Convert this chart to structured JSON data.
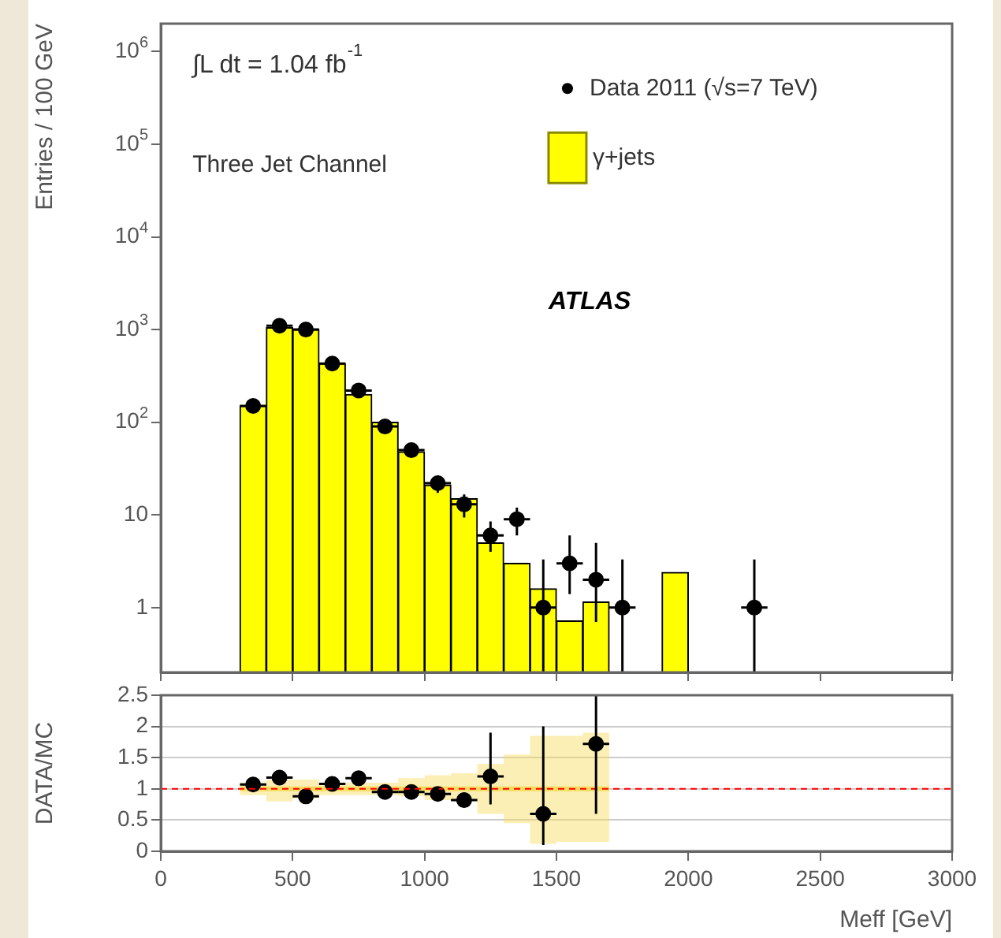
{
  "chart_data": [
    {
      "type": "histogram",
      "ylabel": "Entries / 100 GeV",
      "log": "y",
      "ylim": [
        0.2,
        2000000
      ],
      "yticks": [
        1,
        10,
        {
          "value": 100,
          "label": "10$^{2}$"
        },
        {
          "value": 1000,
          "label": "10$^{3}$"
        },
        {
          "value": 10000,
          "label": "10$^{4}$"
        },
        {
          "value": 100000,
          "label": "10$^{5}$"
        },
        {
          "value": 1000000,
          "label": "10$^{6}$"
        }
      ],
      "xlim": [
        0,
        3000
      ],
      "xticks": [
        0,
        500,
        1000,
        1500,
        2000,
        2500,
        3000
      ],
      "tick_labels": "y",
      "legend": "top right",
      "annotations": [
        "∫L dt = 1.04 fb$^{-1}$",
        "Three Jet Channel",
        "ATLAS"
      ],
      "series": [
        {
          "name": "γ+jets",
          "color": "#ffff00",
          "bins": [
            300,
            400,
            500,
            600,
            700,
            800,
            900,
            1000,
            1100,
            1200,
            1300,
            1400,
            1500,
            1600,
            1700,
            1800,
            1900,
            2000
          ],
          "values": [
            150,
            1050,
            1000,
            430,
            200,
            100,
            48,
            21,
            15,
            5,
            3,
            1.6,
            0.72,
            1.15,
            null,
            null,
            2.4
          ]
        },
        {
          "name": "Data 2011 (√s=7 TeV)",
          "type": "scatter",
          "marker": "circle",
          "color": "#000000",
          "x": [
            350,
            450,
            550,
            650,
            750,
            850,
            950,
            1050,
            1150,
            1250,
            1350,
            1450,
            1550,
            1650,
            1750,
            2250
          ],
          "values": [
            150,
            1100,
            1000,
            430,
            220,
            90,
            50,
            22,
            13,
            6,
            9,
            1,
            3,
            2,
            1,
            1
          ],
          "xerrors": [
            50,
            50,
            50,
            50,
            50,
            50,
            50,
            50,
            50,
            50,
            50,
            50,
            50,
            50,
            50,
            50
          ],
          "errors": [
            null,
            null,
            null,
            null,
            null,
            null,
            null,
            4.7,
            3.6,
            [
              4,
              8.5
            ],
            [
              6,
              12
            ],
            [
              0.2,
              3.3
            ],
            [
              1.4,
              6
            ],
            [
              0.7,
              5
            ],
            [
              0.2,
              3.3
            ],
            [
              0.2,
              3.3
            ]
          ]
        }
      ]
    },
    {
      "type": "scatter",
      "xlabel": "Meff [GeV]",
      "ylabel": "DATA/MC",
      "xlim": [
        0,
        3000
      ],
      "xticks": [
        0,
        500,
        1000,
        1500,
        2000,
        2500,
        3000
      ],
      "ylim": [
        0,
        2.5
      ],
      "yticks": [
        0,
        0.5,
        1,
        1.5,
        2,
        2.5
      ],
      "grid": "y",
      "ref_lines": [
        {
          "axis": "y",
          "value": 1,
          "color": "#ff0000",
          "line_style": "dashed"
        }
      ],
      "series": [
        {
          "type": "step",
          "color": "#f7dc5c",
          "x": [
            300,
            400,
            500,
            600,
            700,
            800,
            900,
            1000,
            1100,
            1200,
            1300,
            1400,
            1500,
            1600,
            1700
          ],
          "values": [
            1,
            1,
            1,
            1,
            1,
            1,
            1,
            1,
            1,
            1,
            1,
            1,
            1,
            1,
            1
          ],
          "lower": [
            0.9,
            0.8,
            0.85,
            0.9,
            0.9,
            0.9,
            0.88,
            0.82,
            0.8,
            0.6,
            0.45,
            0.12,
            0.15,
            0.15,
            0.15
          ],
          "upper": [
            1.1,
            1.15,
            1.15,
            1.1,
            1.1,
            1.1,
            1.17,
            1.22,
            1.25,
            1.4,
            1.55,
            1.85,
            1.85,
            1.9,
            1.9
          ]
        },
        {
          "marker": "circle",
          "color": "#000000",
          "x": [
            350,
            450,
            550,
            650,
            750,
            850,
            950,
            1050,
            1150,
            1250,
            1450,
            1650
          ],
          "values": [
            1.07,
            1.18,
            0.88,
            1.08,
            1.17,
            0.95,
            0.95,
            0.92,
            0.82,
            1.2,
            0.6,
            1.72
          ],
          "xerrors": [
            50,
            50,
            50,
            50,
            50,
            50,
            50,
            50,
            50,
            50,
            50,
            50
          ],
          "errors": [
            null,
            null,
            null,
            null,
            null,
            null,
            null,
            0.1,
            0.12,
            [
              0.75,
              1.9
            ],
            [
              0.1,
              2.0
            ],
            [
              0.6,
              2.5
            ]
          ]
        }
      ]
    }
  ]
}
